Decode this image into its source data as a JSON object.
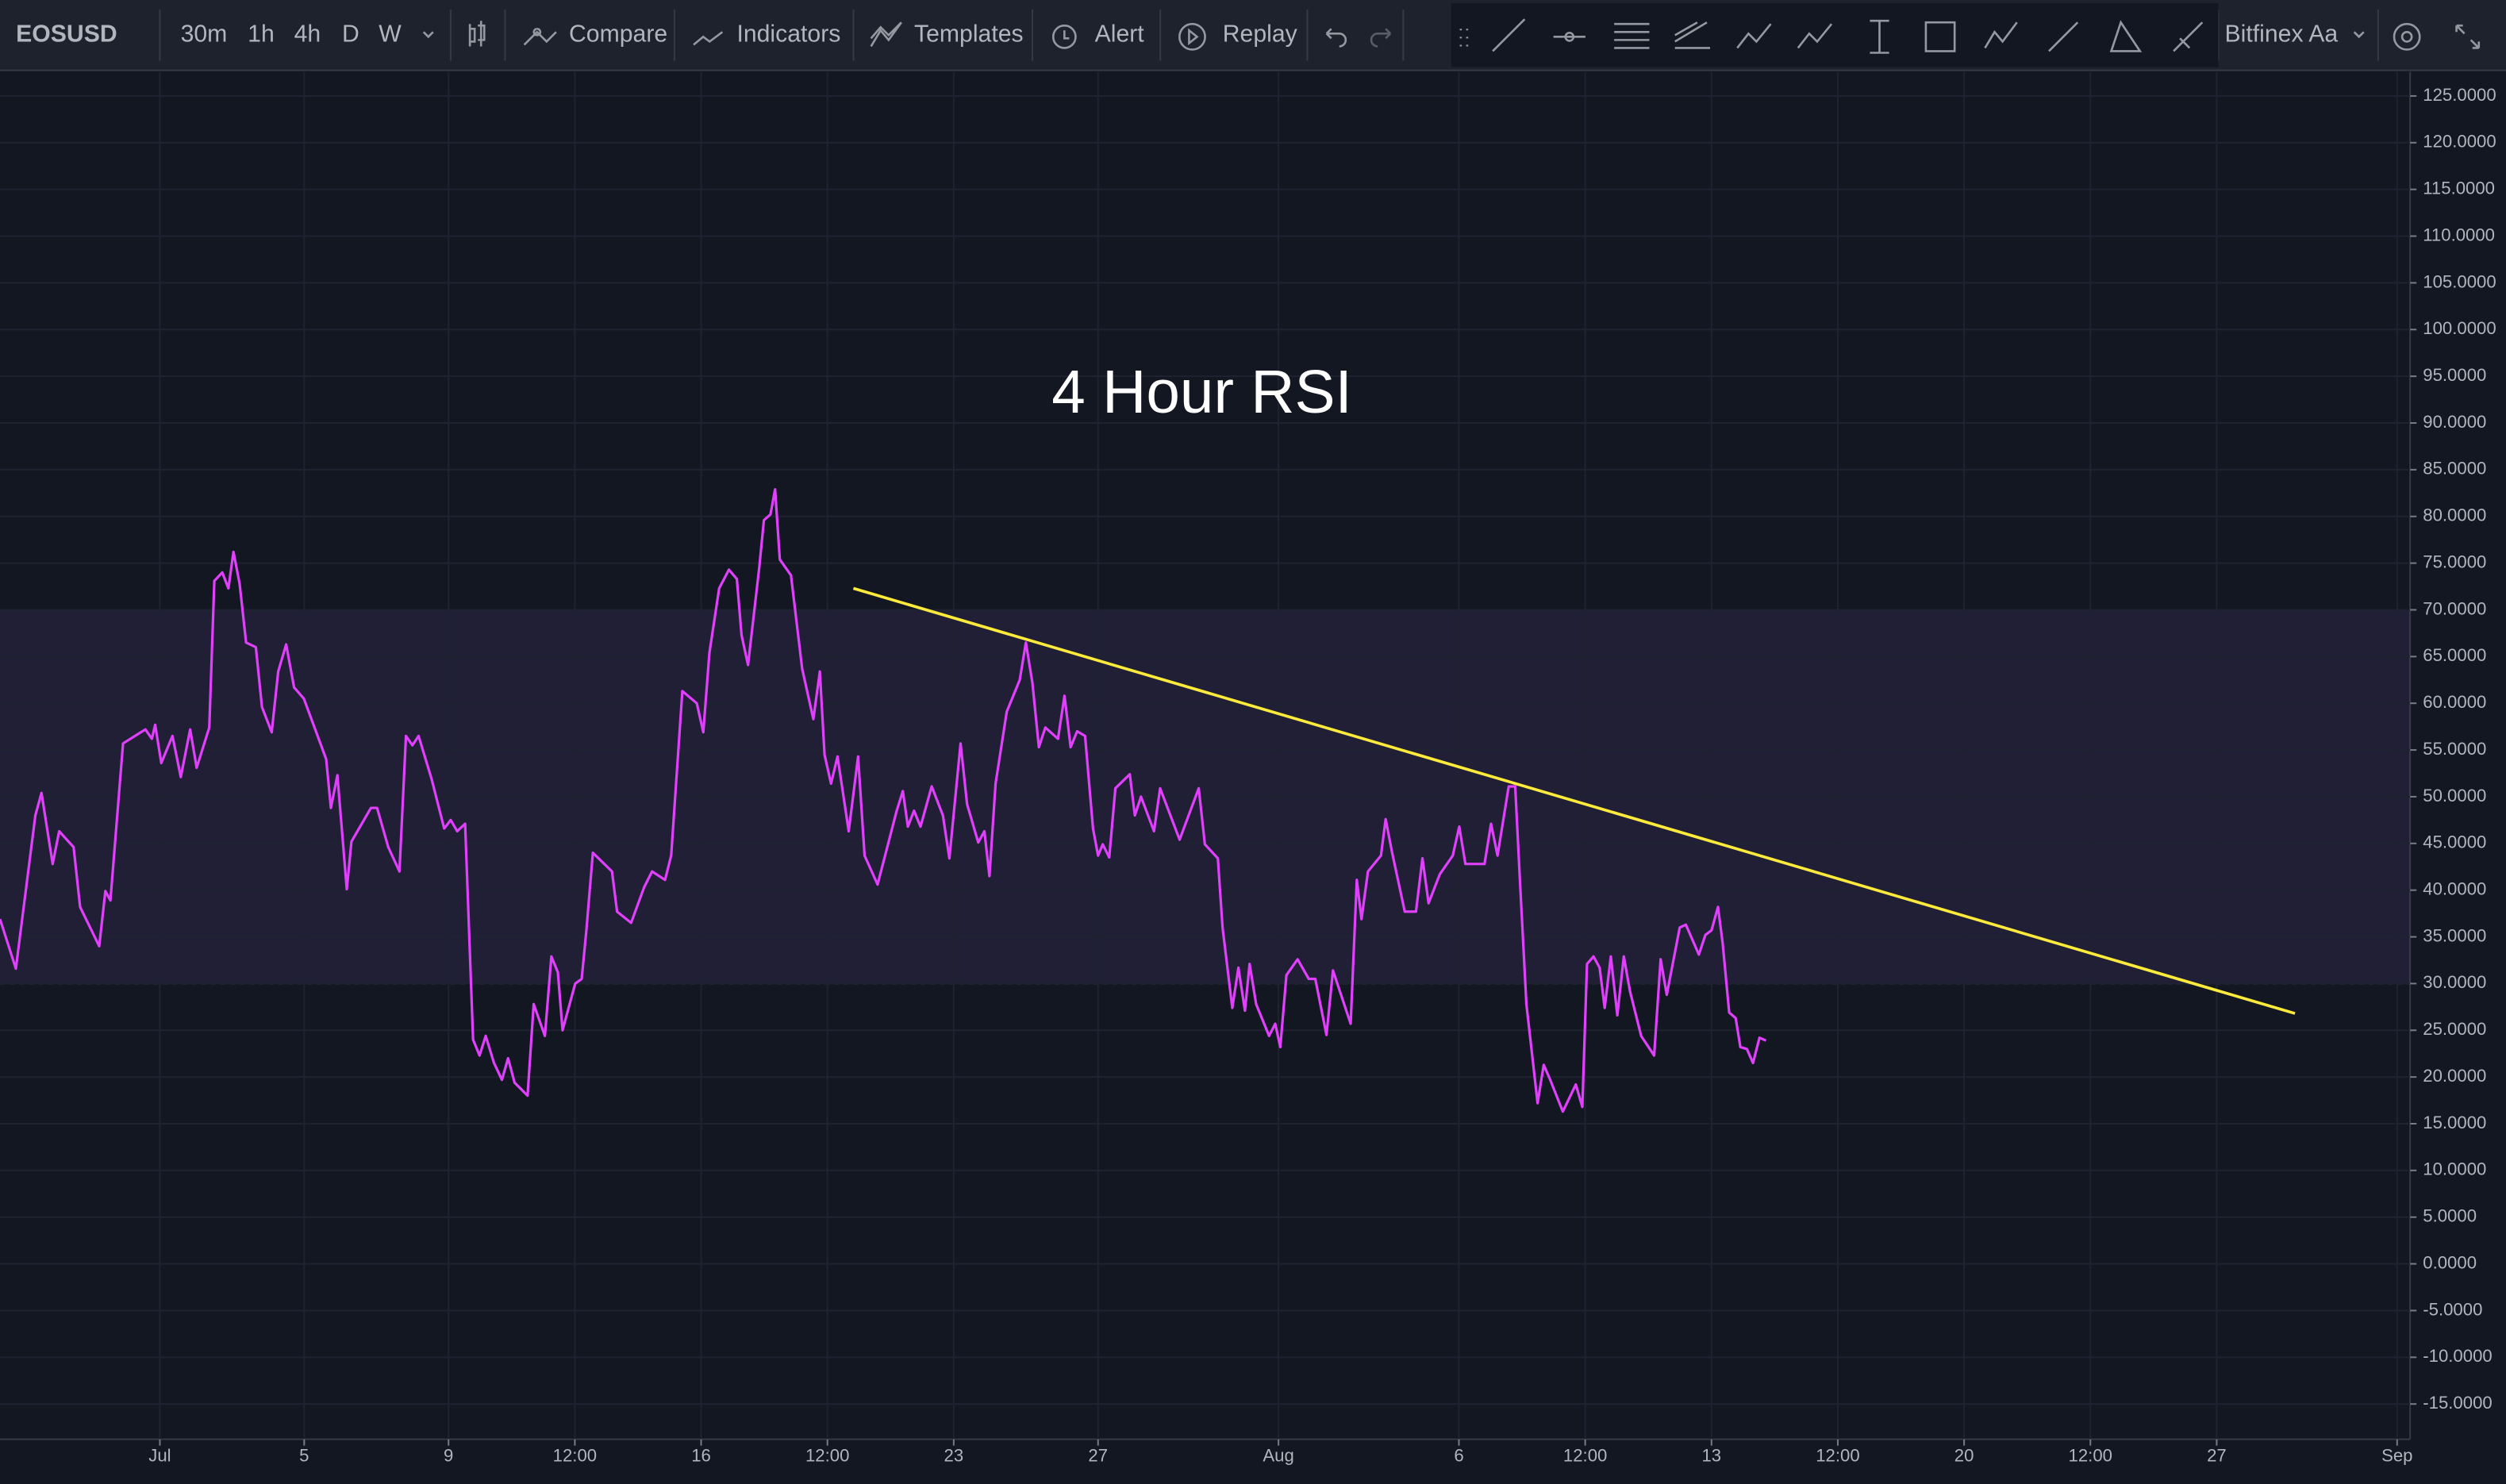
{
  "toolbar": {
    "symbol": "EOSUSD",
    "intervals": [
      "30m",
      "1h",
      "4h",
      "D",
      "W"
    ],
    "buttons": [
      "Compare",
      "Indicators",
      "Templates",
      "Alert",
      "Replay"
    ],
    "exchange": "Bitfinex Aa"
  },
  "chart_data": {
    "type": "line",
    "annotation": "4 Hour RSI",
    "xlim": [
      -4.43,
      62.36
    ],
    "ylim": [
      -18.77,
      127.57
    ],
    "xticks": [
      {
        "value": 0,
        "label": "Jul"
      },
      {
        "value": 4,
        "label": "5"
      },
      {
        "value": 8,
        "label": "9"
      },
      {
        "value": 11.5,
        "label": "12:00"
      },
      {
        "value": 15,
        "label": "16"
      },
      {
        "value": 18.5,
        "label": "12:00"
      },
      {
        "value": 22,
        "label": "23"
      },
      {
        "value": 26,
        "label": "27"
      },
      {
        "value": 31,
        "label": "Aug"
      },
      {
        "value": 36,
        "label": "6"
      },
      {
        "value": 39.5,
        "label": "12:00"
      },
      {
        "value": 43,
        "label": "13"
      },
      {
        "value": 46.5,
        "label": "12:00"
      },
      {
        "value": 50,
        "label": "20"
      },
      {
        "value": 53.5,
        "label": "12:00"
      },
      {
        "value": 57,
        "label": "27"
      },
      {
        "value": 62,
        "label": "Sep"
      }
    ],
    "yticks": [
      {
        "value": 125,
        "label": "125.0000"
      },
      {
        "value": 120,
        "label": "120.0000"
      },
      {
        "value": 115,
        "label": "115.0000"
      },
      {
        "value": 110,
        "label": "110.0000"
      },
      {
        "value": 105,
        "label": "105.0000"
      },
      {
        "value": 100,
        "label": "100.0000"
      },
      {
        "value": 95,
        "label": "95.0000"
      },
      {
        "value": 90,
        "label": "90.0000"
      },
      {
        "value": 85,
        "label": "85.0000"
      },
      {
        "value": 80,
        "label": "80.0000"
      },
      {
        "value": 75,
        "label": "75.0000"
      },
      {
        "value": 70,
        "label": "70.0000"
      },
      {
        "value": 65,
        "label": "65.0000"
      },
      {
        "value": 60,
        "label": "60.0000"
      },
      {
        "value": 55,
        "label": "55.0000"
      },
      {
        "value": 50,
        "label": "50.0000"
      },
      {
        "value": 45,
        "label": "45.0000"
      },
      {
        "value": 40,
        "label": "40.0000"
      },
      {
        "value": 35,
        "label": "35.0000"
      },
      {
        "value": 30,
        "label": "30.0000"
      },
      {
        "value": 25,
        "label": "25.0000"
      },
      {
        "value": 20,
        "label": "20.0000"
      },
      {
        "value": 15,
        "label": "15.0000"
      },
      {
        "value": 10,
        "label": "10.0000"
      },
      {
        "value": 5,
        "label": "5.0000"
      },
      {
        "value": 0,
        "label": "0.0000"
      },
      {
        "value": -5,
        "label": "-5.0000"
      },
      {
        "value": -10,
        "label": "-10.0000"
      },
      {
        "value": -15,
        "label": "-15.0000"
      }
    ],
    "grid": true,
    "band": [
      30,
      70
    ],
    "band_color": "#7e57c2",
    "series": [
      {
        "color": "#e040fb",
        "x": [
          -4.43,
          -3.99,
          -3.45,
          -3.28,
          -2.97,
          -2.79,
          -2.39,
          -2.21,
          -1.68,
          -1.51,
          -1.37,
          -1.02,
          -0.4,
          -0.22,
          -0.13,
          0.04,
          0.35,
          0.58,
          0.84,
          1.02,
          1.37,
          1.51,
          1.73,
          1.9,
          2.04,
          2.21,
          2.39,
          2.66,
          2.83,
          3.1,
          3.28,
          3.5,
          3.72,
          3.99,
          4.43,
          4.61,
          4.74,
          4.92,
          5.18,
          5.31,
          5.85,
          6.02,
          6.33,
          6.64,
          6.82,
          7.0,
          7.17,
          7.53,
          7.88,
          8.06,
          8.24,
          8.46,
          8.68,
          8.86,
          9.03,
          9.26,
          9.48,
          9.65,
          9.83,
          10.19,
          10.36,
          10.67,
          10.85,
          11.03,
          11.16,
          11.51,
          11.69,
          11.82,
          12.0,
          12.53,
          12.67,
          13.06,
          13.42,
          13.64,
          14.0,
          14.17,
          14.48,
          14.88,
          15.06,
          15.23,
          15.5,
          15.77,
          15.99,
          16.12,
          16.3,
          16.61,
          16.74,
          16.92,
          17.05,
          17.18,
          17.49,
          17.8,
          18.11,
          18.29,
          18.42,
          18.6,
          18.78,
          19.09,
          19.35,
          19.53,
          19.89,
          20.42,
          20.59,
          20.73,
          20.9,
          21.08,
          21.39,
          21.7,
          21.88,
          22.19,
          22.37,
          22.68,
          22.85,
          22.99,
          23.16,
          23.47,
          23.83,
          24.0,
          24.18,
          24.36,
          24.54,
          24.89,
          25.07,
          25.24,
          25.42,
          25.64,
          25.86,
          26.0,
          26.13,
          26.31,
          26.48,
          26.88,
          27.02,
          27.19,
          27.55,
          27.72,
          28.26,
          28.79,
          28.96,
          29.32,
          29.45,
          29.72,
          29.89,
          30.07,
          30.2,
          30.38,
          30.74,
          30.91,
          31.05,
          31.22,
          31.53,
          31.84,
          32.02,
          32.33,
          32.51,
          33.0,
          33.17,
          33.3,
          33.48,
          33.84,
          33.97,
          34.15,
          34.5,
          34.81,
          34.99,
          35.16,
          35.47,
          35.83,
          36.01,
          36.18,
          36.71,
          36.89,
          37.07,
          37.38,
          37.56,
          37.69,
          37.87,
          38.18,
          38.35,
          38.53,
          38.88,
          39.24,
          39.42,
          39.55,
          39.73,
          39.9,
          40.04,
          40.21,
          40.39,
          40.57,
          40.74,
          41.05,
          41.41,
          41.59,
          41.76,
          42.12,
          42.29,
          42.65,
          42.83,
          43.0,
          43.18,
          43.31,
          43.49,
          43.67,
          43.8,
          43.98,
          44.15,
          44.33,
          44.51
        ],
        "values": [
          36.9,
          31.6,
          48.0,
          50.4,
          42.8,
          46.3,
          44.6,
          38.2,
          34.0,
          39.9,
          38.9,
          55.7,
          57.2,
          56.2,
          57.7,
          53.6,
          56.5,
          52.1,
          57.2,
          53.1,
          57.4,
          73.1,
          74.0,
          72.3,
          76.2,
          72.8,
          66.5,
          66.0,
          59.6,
          56.9,
          63.4,
          66.3,
          61.7,
          60.5,
          55.9,
          54.0,
          48.8,
          52.3,
          40.1,
          45.2,
          48.8,
          48.8,
          44.6,
          42.0,
          56.5,
          55.5,
          56.5,
          51.9,
          46.6,
          47.5,
          46.3,
          47.1,
          24.0,
          22.3,
          24.4,
          21.5,
          19.7,
          22.0,
          19.4,
          18.0,
          27.8,
          24.4,
          32.9,
          31.2,
          25.0,
          30.0,
          30.5,
          35.7,
          44.0,
          42.0,
          37.7,
          36.5,
          40.3,
          42.0,
          41.1,
          43.7,
          61.3,
          60.0,
          56.9,
          65.4,
          72.3,
          74.3,
          73.3,
          67.3,
          64.1,
          74.5,
          79.6,
          80.2,
          82.9,
          75.4,
          73.7,
          63.7,
          58.3,
          63.4,
          54.5,
          51.4,
          54.3,
          46.3,
          54.3,
          43.7,
          40.6,
          48.5,
          50.6,
          46.8,
          48.5,
          46.8,
          51.1,
          48.0,
          43.4,
          55.7,
          49.2,
          45.1,
          46.3,
          41.5,
          51.4,
          59.1,
          62.5,
          66.5,
          62.2,
          55.3,
          57.4,
          56.2,
          60.8,
          55.3,
          57.0,
          56.5,
          46.6,
          43.7,
          44.9,
          43.5,
          50.9,
          52.4,
          48.0,
          50.0,
          46.3,
          50.9,
          45.4,
          50.9,
          44.9,
          43.4,
          36.0,
          27.4,
          31.7,
          27.1,
          32.1,
          27.8,
          24.4,
          25.7,
          23.2,
          30.9,
          32.6,
          30.5,
          30.5,
          24.5,
          31.4,
          25.7,
          41.1,
          36.9,
          42.0,
          43.7,
          47.6,
          44.0,
          37.7,
          37.7,
          43.4,
          38.6,
          41.7,
          43.7,
          46.8,
          42.8,
          42.8,
          47.1,
          43.7,
          51.1,
          51.1,
          41.1,
          27.8,
          17.2,
          21.3,
          19.7,
          16.3,
          19.2,
          16.8,
          32.1,
          32.9,
          31.7,
          27.4,
          32.9,
          26.6,
          32.9,
          29.2,
          24.4,
          22.3,
          32.6,
          28.8,
          36.0,
          36.3,
          33.1,
          35.2,
          35.7,
          38.2,
          34.3,
          26.9,
          26.3,
          23.2,
          23.0,
          21.5,
          24.2,
          23.9
        ]
      }
    ],
    "trendline": {
      "color": "#ffeb3b",
      "x": [
        19.22,
        59.17
      ],
      "values": [
        72.3,
        26.8
      ]
    }
  }
}
